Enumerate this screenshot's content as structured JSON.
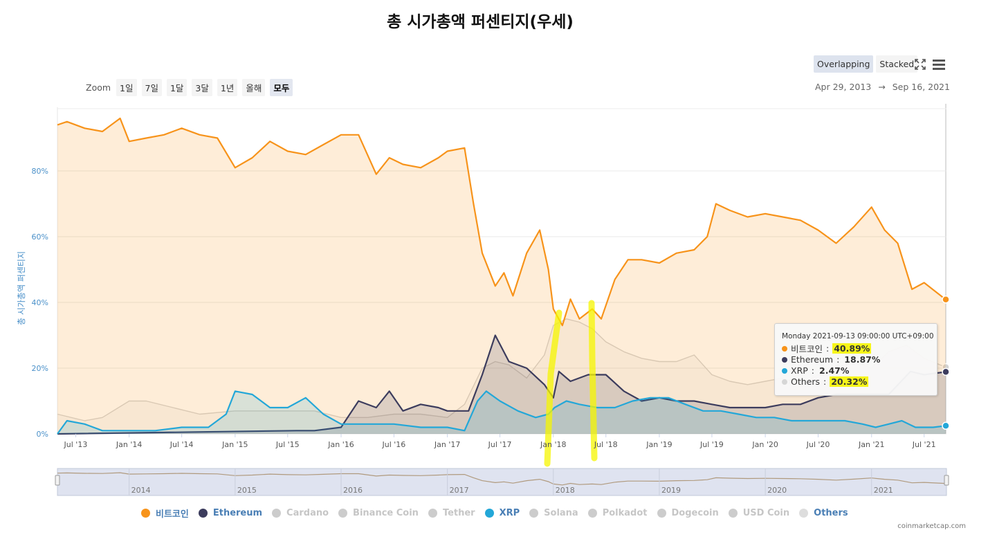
{
  "title": "총 시가총액 퍼센티지(우세)",
  "modes": [
    {
      "label": "Overlapping",
      "active": true
    },
    {
      "label": "Stacked",
      "active": false
    }
  ],
  "icons": {
    "fullscreen": "fullscreen-icon",
    "menu": "hamburger-menu-icon"
  },
  "zoom": {
    "label": "Zoom",
    "buttons": [
      {
        "label": "1일",
        "active": false
      },
      {
        "label": "7일",
        "active": false
      },
      {
        "label": "1달",
        "active": false
      },
      {
        "label": "3달",
        "active": false
      },
      {
        "label": "1년",
        "active": false
      },
      {
        "label": "올해",
        "active": false
      },
      {
        "label": "모두",
        "active": true
      }
    ]
  },
  "range": {
    "from": "Apr 29, 2013",
    "arrow": "→",
    "to": "Sep 16, 2021"
  },
  "tooltip": {
    "header": "Monday 2021-09-13 09:00:00 UTC+09:00",
    "rows": [
      {
        "label": "비트코인",
        "value": "40.89%",
        "color": "#f7931a",
        "highlight": true
      },
      {
        "label": "Ethereum",
        "value": "18.87%",
        "color": "#3c3c5d",
        "highlight": false
      },
      {
        "label": "XRP",
        "value": "2.47%",
        "color": "#23a7d8",
        "highlight": false
      },
      {
        "label": "Others",
        "value": "20.32%",
        "color": "#d6d6d6",
        "highlight": true
      }
    ]
  },
  "legend": [
    {
      "label": "비트코인",
      "color": "#f7931a",
      "active": true,
      "text_color": "#4a7fb5"
    },
    {
      "label": "Ethereum",
      "color": "#3c3c5d",
      "active": true,
      "text_color": "#4a7fb5"
    },
    {
      "label": "Cardano",
      "color": "#cccccc",
      "active": false,
      "text_color": "#c6c6c6"
    },
    {
      "label": "Binance Coin",
      "color": "#cccccc",
      "active": false,
      "text_color": "#c6c6c6"
    },
    {
      "label": "Tether",
      "color": "#cccccc",
      "active": false,
      "text_color": "#c6c6c6"
    },
    {
      "label": "XRP",
      "color": "#23a7d8",
      "active": true,
      "text_color": "#4a7fb5"
    },
    {
      "label": "Solana",
      "color": "#cccccc",
      "active": false,
      "text_color": "#c6c6c6"
    },
    {
      "label": "Polkadot",
      "color": "#cccccc",
      "active": false,
      "text_color": "#c6c6c6"
    },
    {
      "label": "Dogecoin",
      "color": "#cccccc",
      "active": false,
      "text_color": "#c6c6c6"
    },
    {
      "label": "USD Coin",
      "color": "#cccccc",
      "active": false,
      "text_color": "#c6c6c6"
    },
    {
      "label": "Others",
      "color": "#dddddd",
      "active": true,
      "text_color": "#4a7fb5"
    }
  ],
  "credit": "coinmarketcap.com",
  "chart_data": {
    "type": "area",
    "ylabel": "총 시가총액 퍼센티지",
    "ylim": [
      0,
      100
    ],
    "y_ticks": [
      "0%",
      "20%",
      "40%",
      "60%",
      "80%"
    ],
    "y_tick_values": [
      0,
      20,
      40,
      60,
      80
    ],
    "xlim": [
      "2013-04-29",
      "2021-09-16"
    ],
    "x_ticks": [
      "Jul '13",
      "Jan '14",
      "Jul '14",
      "Jan '15",
      "Jul '15",
      "Jan '16",
      "Jul '16",
      "Jan '17",
      "Jul '17",
      "Jan '18",
      "Jul '18",
      "Jan '19",
      "Jul '19",
      "Jan '20",
      "Jul '20",
      "Jan '21",
      "Jul '21"
    ],
    "x_tick_dates": [
      "2013-07-01",
      "2014-01-01",
      "2014-07-01",
      "2015-01-01",
      "2015-07-01",
      "2016-01-01",
      "2016-07-01",
      "2017-01-01",
      "2017-07-01",
      "2018-01-01",
      "2018-07-01",
      "2019-01-01",
      "2019-07-01",
      "2020-01-01",
      "2020-07-01",
      "2021-01-01",
      "2021-07-01"
    ],
    "navigator_years": [
      "2014",
      "2015",
      "2016",
      "2017",
      "2018",
      "2019",
      "2020",
      "2021"
    ],
    "grid": true,
    "series": [
      {
        "name": "Others",
        "color": "#d3d3d3",
        "x": [
          "2013-04-29",
          "2013-08-01",
          "2013-10-01",
          "2014-01-01",
          "2014-03-01",
          "2014-06-01",
          "2014-09-01",
          "2015-01-01",
          "2015-04-01",
          "2015-07-01",
          "2015-10-01",
          "2016-01-01",
          "2016-04-01",
          "2016-07-01",
          "2016-10-01",
          "2017-01-01",
          "2017-03-01",
          "2017-05-01",
          "2017-06-15",
          "2017-08-01",
          "2017-10-01",
          "2017-12-01",
          "2018-01-01",
          "2018-02-15",
          "2018-04-01",
          "2018-05-15",
          "2018-07-01",
          "2018-09-01",
          "2018-11-01",
          "2019-01-01",
          "2019-03-01",
          "2019-05-01",
          "2019-07-01",
          "2019-09-01",
          "2019-11-01",
          "2020-01-01",
          "2020-03-01",
          "2020-05-01",
          "2020-07-01",
          "2020-09-01",
          "2020-11-01",
          "2021-01-01",
          "2021-03-01",
          "2021-05-01",
          "2021-07-01",
          "2021-09-13"
        ],
        "y": [
          6,
          4,
          5,
          10,
          10,
          8,
          6,
          7,
          7,
          7,
          7,
          5,
          5,
          6,
          6,
          5,
          9,
          20,
          22,
          21,
          17,
          24,
          33,
          35,
          34,
          32,
          28,
          25,
          23,
          22,
          22,
          24,
          18,
          16,
          15,
          16,
          17,
          15,
          18,
          20,
          22,
          20,
          25,
          27,
          23,
          20.32
        ]
      },
      {
        "name": "비트코인",
        "color": "#f7931a",
        "x": [
          "2013-04-29",
          "2013-06-01",
          "2013-08-01",
          "2013-10-01",
          "2013-12-01",
          "2014-01-01",
          "2014-03-01",
          "2014-05-01",
          "2014-07-01",
          "2014-09-01",
          "2014-11-01",
          "2015-01-01",
          "2015-03-01",
          "2015-05-01",
          "2015-07-01",
          "2015-09-01",
          "2015-11-01",
          "2016-01-01",
          "2016-03-01",
          "2016-05-01",
          "2016-06-15",
          "2016-08-01",
          "2016-10-01",
          "2016-12-01",
          "2017-01-01",
          "2017-03-01",
          "2017-04-01",
          "2017-05-01",
          "2017-06-15",
          "2017-07-15",
          "2017-08-15",
          "2017-10-01",
          "2017-11-15",
          "2017-12-15",
          "2018-01-01",
          "2018-02-01",
          "2018-03-01",
          "2018-04-01",
          "2018-05-15",
          "2018-06-15",
          "2018-08-01",
          "2018-09-15",
          "2018-11-01",
          "2019-01-01",
          "2019-03-01",
          "2019-05-01",
          "2019-06-15",
          "2019-07-15",
          "2019-09-01",
          "2019-11-01",
          "2020-01-01",
          "2020-03-01",
          "2020-05-01",
          "2020-07-01",
          "2020-09-01",
          "2020-11-01",
          "2021-01-01",
          "2021-02-15",
          "2021-04-01",
          "2021-05-20",
          "2021-07-01",
          "2021-09-13"
        ],
        "y": [
          94,
          95,
          93,
          92,
          96,
          89,
          90,
          91,
          93,
          91,
          90,
          81,
          84,
          89,
          86,
          85,
          88,
          91,
          91,
          79,
          84,
          82,
          81,
          84,
          86,
          87,
          70,
          55,
          45,
          49,
          42,
          55,
          62,
          50,
          38,
          33,
          41,
          35,
          38,
          35,
          47,
          53,
          53,
          52,
          55,
          56,
          60,
          70,
          68,
          66,
          67,
          66,
          65,
          62,
          58,
          63,
          69,
          62,
          58,
          44,
          46,
          40.89
        ]
      },
      {
        "name": "Ethereum",
        "color": "#3c3c5d",
        "x": [
          "2013-04-29",
          "2015-08-01",
          "2015-10-01",
          "2016-01-01",
          "2016-03-01",
          "2016-05-01",
          "2016-06-15",
          "2016-08-01",
          "2016-10-01",
          "2016-12-01",
          "2017-01-01",
          "2017-03-15",
          "2017-05-01",
          "2017-06-15",
          "2017-08-01",
          "2017-10-01",
          "2017-12-01",
          "2018-01-01",
          "2018-01-20",
          "2018-03-01",
          "2018-05-01",
          "2018-07-01",
          "2018-09-01",
          "2018-11-01",
          "2019-01-01",
          "2019-03-01",
          "2019-05-01",
          "2019-07-01",
          "2019-09-01",
          "2019-11-01",
          "2020-01-01",
          "2020-03-01",
          "2020-05-01",
          "2020-07-01",
          "2020-09-01",
          "2020-11-01",
          "2021-01-01",
          "2021-03-01",
          "2021-05-15",
          "2021-07-01",
          "2021-09-13"
        ],
        "y": [
          0,
          1,
          1,
          2,
          10,
          8,
          13,
          7,
          9,
          8,
          7,
          7,
          18,
          30,
          22,
          20,
          15,
          11,
          19,
          16,
          18,
          18,
          13,
          10,
          11,
          10,
          10,
          9,
          8,
          8,
          8,
          9,
          9,
          11,
          12,
          12,
          12,
          12,
          19,
          18,
          18.87
        ]
      },
      {
        "name": "XRP",
        "color": "#23a7d8",
        "x": [
          "2013-04-29",
          "2013-06-01",
          "2013-08-01",
          "2013-10-01",
          "2014-01-01",
          "2014-04-01",
          "2014-07-01",
          "2014-10-01",
          "2014-12-01",
          "2015-01-01",
          "2015-03-01",
          "2015-05-01",
          "2015-07-01",
          "2015-09-01",
          "2015-11-01",
          "2016-01-01",
          "2016-04-01",
          "2016-07-01",
          "2016-10-01",
          "2017-01-01",
          "2017-03-01",
          "2017-04-15",
          "2017-05-15",
          "2017-07-01",
          "2017-09-01",
          "2017-11-01",
          "2017-12-15",
          "2018-01-05",
          "2018-02-15",
          "2018-04-01",
          "2018-06-01",
          "2018-08-01",
          "2018-10-01",
          "2018-12-01",
          "2019-02-01",
          "2019-04-01",
          "2019-06-01",
          "2019-08-01",
          "2019-10-01",
          "2019-12-01",
          "2020-02-01",
          "2020-04-01",
          "2020-06-01",
          "2020-08-01",
          "2020-10-01",
          "2020-12-01",
          "2021-01-15",
          "2021-03-01",
          "2021-04-15",
          "2021-06-01",
          "2021-08-01",
          "2021-09-13"
        ],
        "y": [
          0,
          4,
          3,
          1,
          1,
          1,
          2,
          2,
          6,
          13,
          12,
          8,
          8,
          11,
          6,
          3,
          3,
          3,
          2,
          2,
          1,
          10,
          13,
          10,
          7,
          5,
          6,
          8,
          10,
          9,
          8,
          8,
          10,
          11,
          11,
          9,
          7,
          7,
          6,
          5,
          5,
          4,
          4,
          4,
          4,
          3,
          2,
          3,
          4,
          2,
          2,
          2.47
        ]
      }
    ]
  }
}
